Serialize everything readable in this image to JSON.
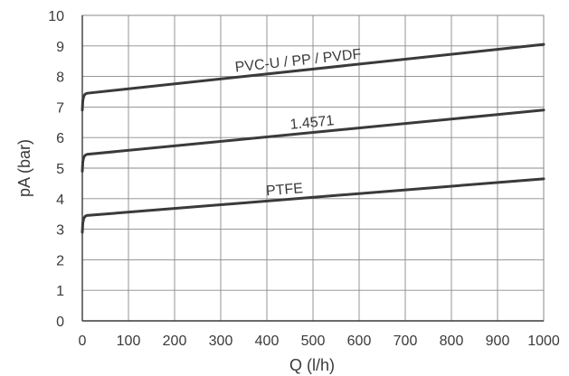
{
  "chart_data": {
    "type": "line",
    "xlabel": "Q (l/h)",
    "ylabel": "pA (bar)",
    "xlim": [
      0,
      1000
    ],
    "ylim": [
      0,
      10
    ],
    "xticks": [
      0,
      100,
      200,
      300,
      400,
      500,
      600,
      700,
      800,
      900,
      1000
    ],
    "yticks": [
      0,
      1,
      2,
      3,
      4,
      5,
      6,
      7,
      8,
      9,
      10
    ],
    "grid": true,
    "series": [
      {
        "name": "PVC-U / PP / PVDF",
        "x": [
          0,
          1,
          3,
          6,
          10,
          1000
        ],
        "y": [
          6.9,
          7.2,
          7.35,
          7.42,
          7.45,
          9.05
        ],
        "label_at": 470
      },
      {
        "name": "1.4571",
        "x": [
          0,
          1,
          3,
          6,
          10,
          1000
        ],
        "y": [
          4.9,
          5.2,
          5.35,
          5.42,
          5.45,
          6.9
        ],
        "label_at": 500
      },
      {
        "name": "PTFE",
        "x": [
          0,
          1,
          3,
          6,
          10,
          1000
        ],
        "y": [
          2.9,
          3.2,
          3.35,
          3.42,
          3.45,
          4.65
        ],
        "label_at": 440
      }
    ]
  }
}
